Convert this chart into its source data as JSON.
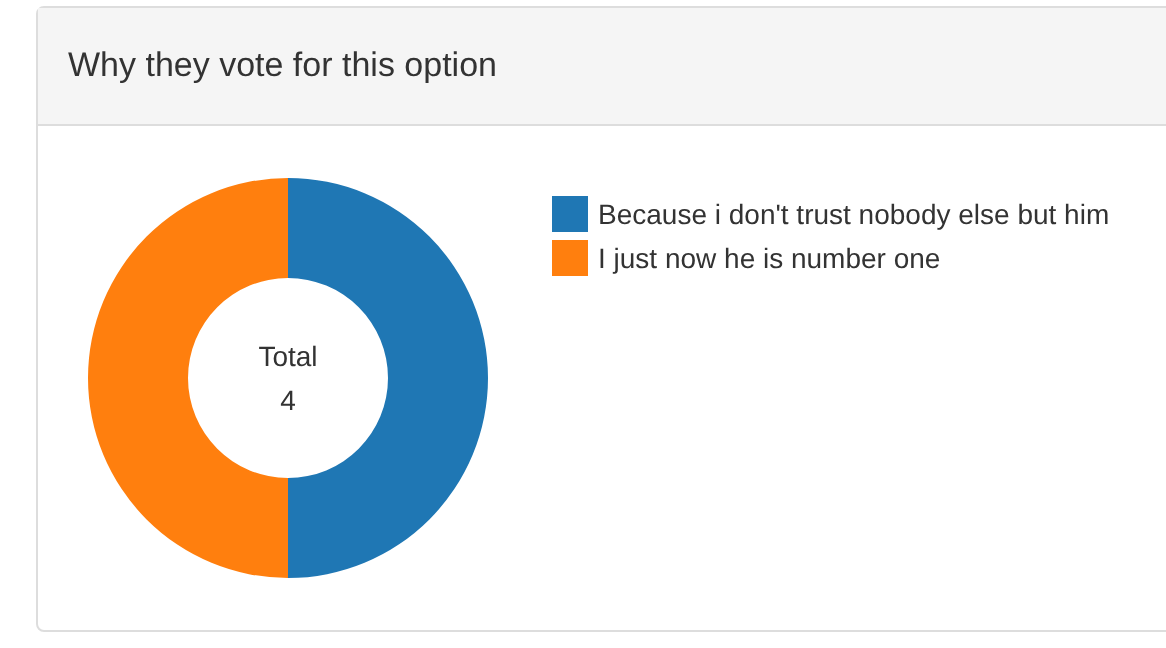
{
  "chart_data": {
    "type": "donut",
    "title": "Why they vote for this option",
    "categories": [
      "Because i don't trust nobody else but him",
      "I just now he is number one"
    ],
    "values": [
      50,
      50
    ],
    "colors": [
      "#1f77b4",
      "#ff7f0e"
    ],
    "annotations": [
      "Total",
      "4"
    ],
    "legend": "right"
  }
}
